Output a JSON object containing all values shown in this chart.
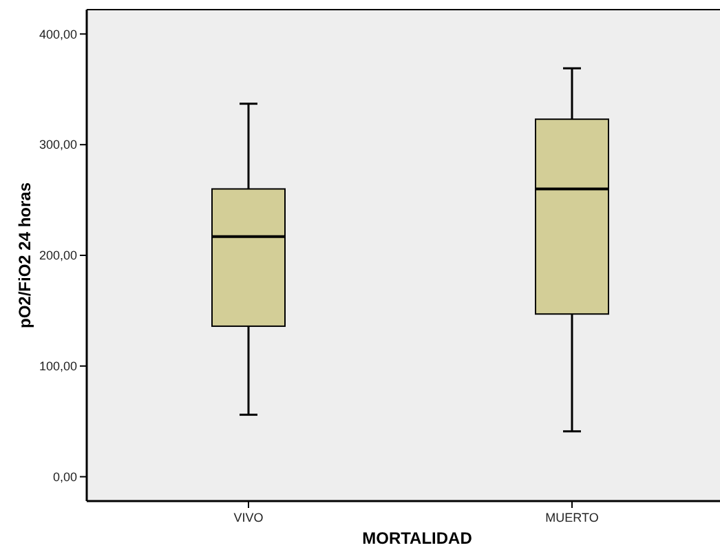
{
  "chart_data": {
    "type": "box",
    "xlabel": "MORTALIDAD",
    "ylabel": "pO2/FiO2 24 horas",
    "categories": [
      "VIVO",
      "MUERTO"
    ],
    "color": "#d3ce97",
    "boxes": [
      {
        "low": 56,
        "q1": 136,
        "median": 217,
        "q3": 260,
        "high": 337
      },
      {
        "low": 41,
        "q1": 147,
        "median": 260,
        "q3": 323,
        "high": 369
      }
    ],
    "ylim": [
      -22,
      422
    ],
    "yticks": [
      {
        "value": 0,
        "label": "0,00"
      },
      {
        "value": 100,
        "label": "100,00"
      },
      {
        "value": 200,
        "label": "200,00"
      },
      {
        "value": 300,
        "label": "300,00"
      },
      {
        "value": 400,
        "label": "400,00"
      }
    ],
    "grid": false
  }
}
